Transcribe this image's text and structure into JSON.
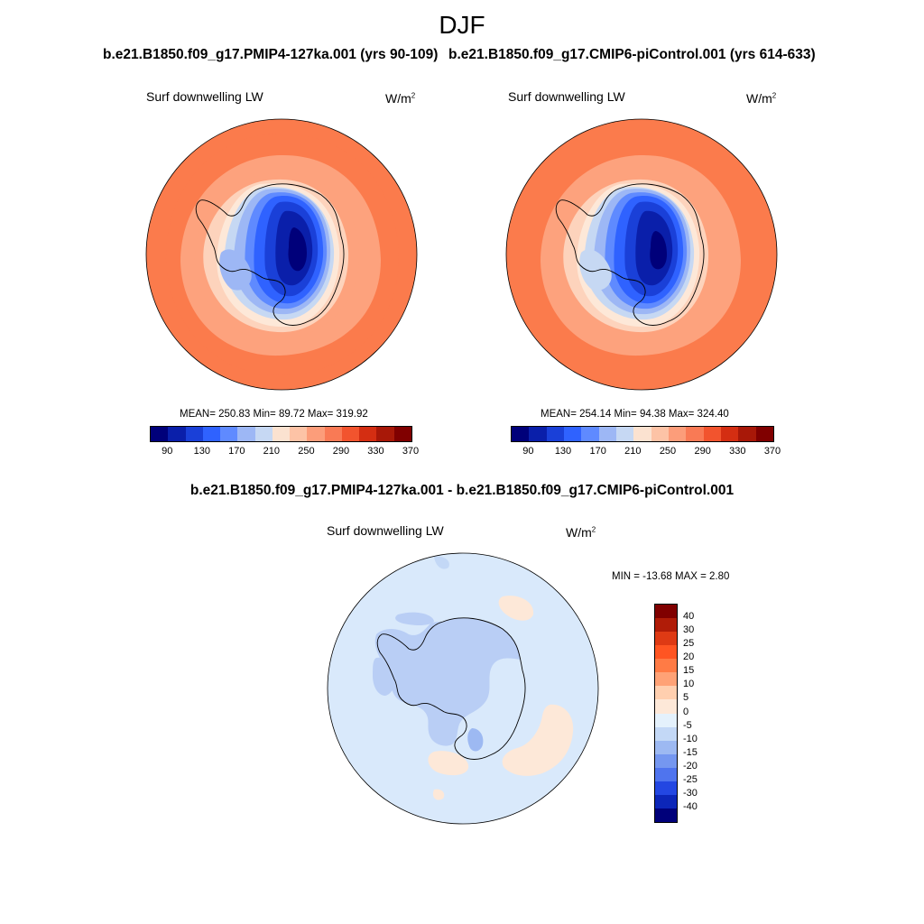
{
  "figure": {
    "title": "DJF",
    "panels": [
      {
        "title": "b.e21.B1850.f09_g17.PMIP4-127ka.001 (yrs 90-109)",
        "variable": "Surf downwelling LW",
        "units_base": "W/m",
        "units_exp": "2",
        "stats": "MEAN= 250.83  Min=  89.72  Max= 319.92"
      },
      {
        "title": "b.e21.B1850.f09_g17.CMIP6-piControl.001 (yrs 614-633)",
        "variable": "Surf downwelling LW",
        "units_base": "W/m",
        "units_exp": "2",
        "stats": "MEAN= 254.14  Min=  94.38  Max= 324.40"
      }
    ],
    "diff_panel": {
      "title": "b.e21.B1850.f09_g17.PMIP4-127ka.001 - b.e21.B1850.f09_g17.CMIP6-piControl.001",
      "variable": "Surf downwelling LW",
      "units_base": "W/m",
      "units_exp": "2",
      "stats": "MIN = -13.68 MAX =   2.80"
    }
  },
  "colorbar_abs": {
    "tick_labels": [
      "90",
      "130",
      "170",
      "210",
      "250",
      "290",
      "330",
      "370"
    ],
    "colors": [
      "#00007a",
      "#0a1faa",
      "#1a40d8",
      "#2f62ff",
      "#5f8aff",
      "#9db7f5",
      "#c6d8f3",
      "#fbe2d0",
      "#fdc3a6",
      "#fc9d7a",
      "#f97a55",
      "#f2542e",
      "#d42e12",
      "#a81808",
      "#800000"
    ]
  },
  "colorbar_diff": {
    "tick_labels": [
      "40",
      "30",
      "25",
      "20",
      "15",
      "10",
      "5",
      "0",
      "-5",
      "-10",
      "-15",
      "-20",
      "-25",
      "-30",
      "-40"
    ],
    "colors": [
      "#800000",
      "#b01c08",
      "#de3a14",
      "#ff5522",
      "#ff7b45",
      "#ffa276",
      "#ffcfaf",
      "#fde8d8",
      "#e4f1fc",
      "#c3d8f6",
      "#9db9f2",
      "#7597f0",
      "#4f74ee",
      "#2347e2",
      "#0c26b8",
      "#00007a"
    ]
  },
  "colors": {
    "ocean_outer": "#fb7b4c",
    "ocean_mid": "#fda27d",
    "coast_ring": "#fdd3bc",
    "diff_background": "#d9e9fb",
    "diff_negative": "#b9cef5",
    "diff_positive": "#fde8d8"
  }
}
